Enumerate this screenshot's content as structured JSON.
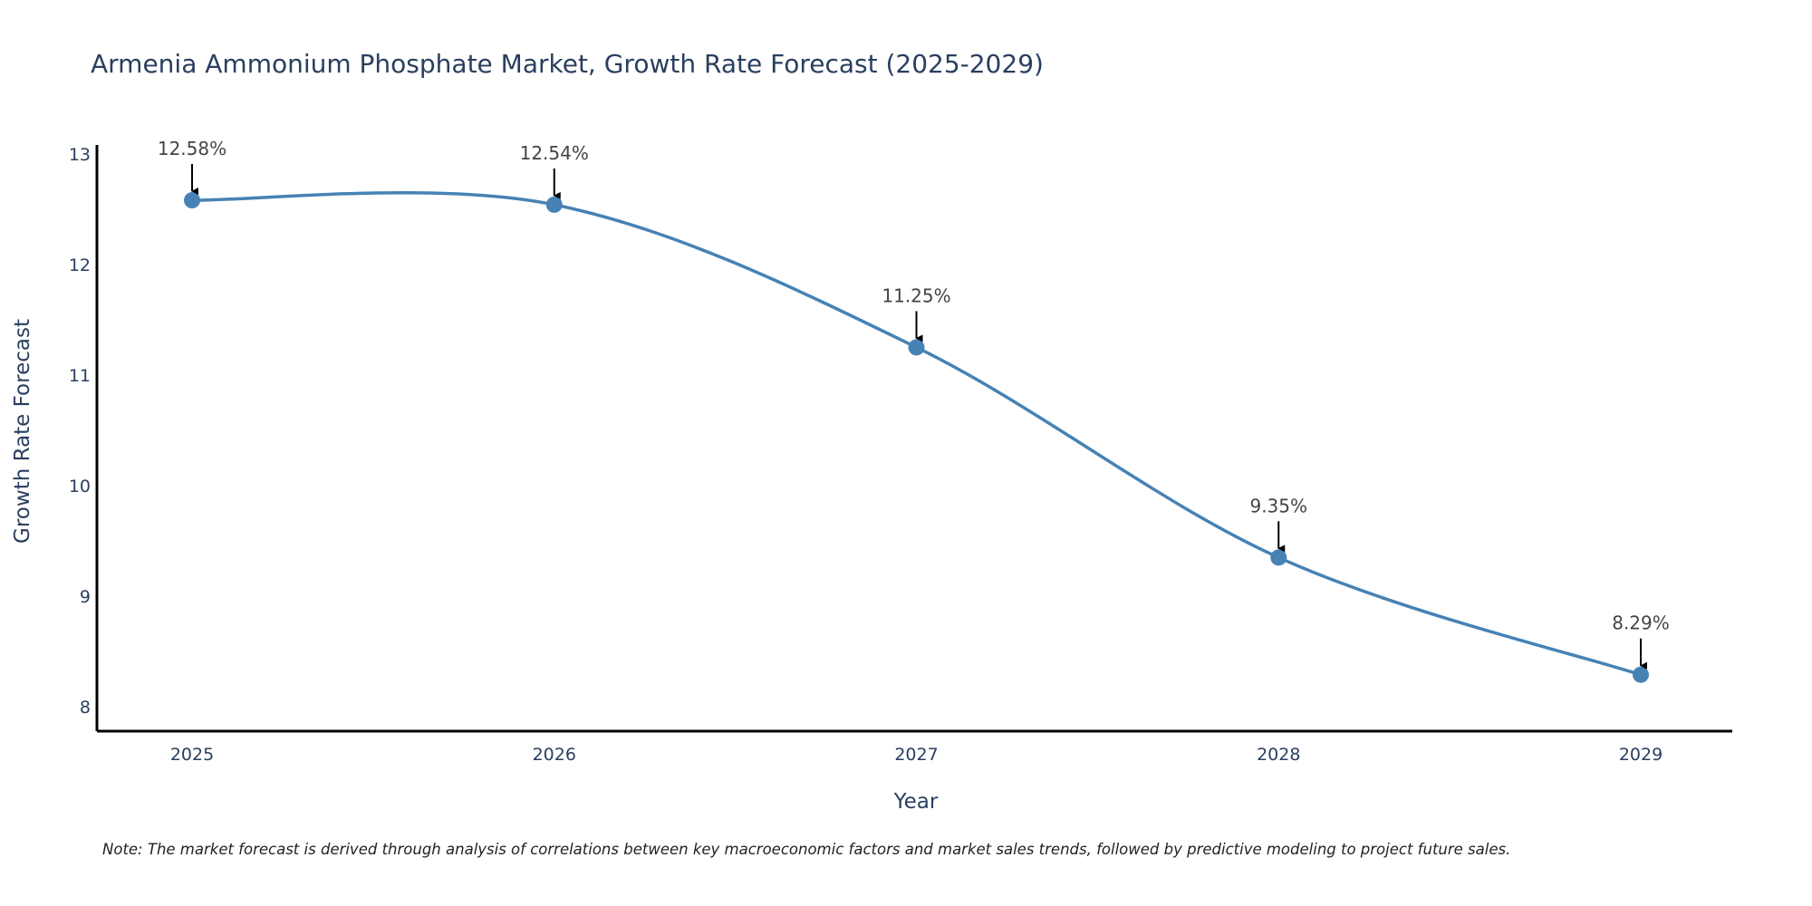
{
  "chart_data": {
    "type": "line",
    "title": "Armenia Ammonium Phosphate Market, Growth Rate Forecast (2025-2029)",
    "xlabel": "Year",
    "ylabel": "Growth Rate Forecast",
    "categories": [
      "2025",
      "2026",
      "2027",
      "2028",
      "2029"
    ],
    "series": [
      {
        "name": "Growth Rate Forecast",
        "values": [
          12.58,
          12.54,
          11.25,
          9.35,
          8.29
        ]
      }
    ],
    "annotations": [
      "12.58%",
      "12.54%",
      "11.25%",
      "9.35%",
      "8.29%"
    ],
    "yticks": [
      "8",
      "9",
      "10",
      "11",
      "12",
      "13"
    ],
    "ylim": [
      7.78,
      13.08
    ],
    "grid": false,
    "line_shape": "spline",
    "colors": {
      "line": "#4682b4",
      "marker": "#4682b4",
      "axis": "#000000",
      "text": "#2a3f5f"
    }
  },
  "note": "Note: The market forecast is derived through analysis of correlations between key macroeconomic factors and market sales trends, followed by predictive modeling to project future sales."
}
